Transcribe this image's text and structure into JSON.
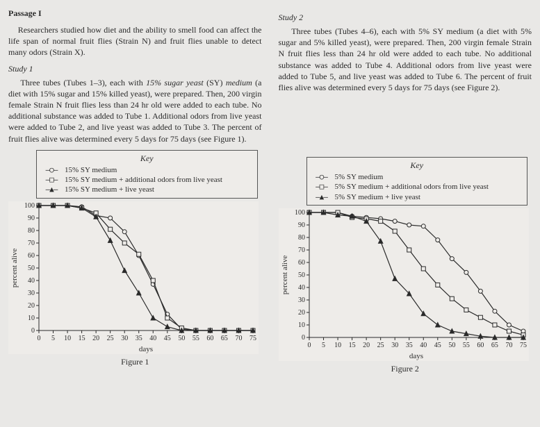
{
  "passage_title": "Passage I",
  "intro": "Researchers studied how diet and the ability to smell food can affect the life span of normal fruit flies (Strain N) and fruit flies unable to detect many odors (Strain X).",
  "study1": {
    "title": "Study 1",
    "text_before_italic": "Three tubes (Tubes 1–3), each with ",
    "italic1": "15% sugar yeast",
    "text_mid1": " (SY) ",
    "italic2": "medium",
    "text_after": " (a diet with 15% sugar and 15% killed yeast), were prepared. Then, 200 virgin female Strain N fruit flies less than 24 hr old were added to each tube. No additional substance was added to Tube 1. Additional odors from live yeast were added to Tube 2, and live yeast was added to Tube 3. The percent of fruit flies alive was determined every 5 days for 75 days (see Figure 1)."
  },
  "study2": {
    "title": "Study 2",
    "text": "Three tubes (Tubes 4–6), each with 5% SY medium (a diet with 5% sugar and 5% killed yeast), were prepared. Then, 200 virgin female Strain N fruit flies less than 24 hr old were added to each tube. No additional substance was added to Tube 4. Additional odors from live yeast were added to Tube 5, and live yeast was added to Tube 6. The percent of fruit flies alive was determined every 5 days for 75 days (see Figure 2)."
  },
  "chart1": {
    "key_title": "Key",
    "legend": [
      {
        "sym": "—○—",
        "label": "15% SY medium"
      },
      {
        "sym": "—□—",
        "label": "15% SY medium + additional odors from live yeast"
      },
      {
        "sym": "—▲—",
        "label": "15% SY medium + live yeast"
      }
    ],
    "y_label": "percent alive",
    "x_label": "days",
    "x_ticks": [
      0,
      5,
      10,
      15,
      20,
      25,
      30,
      35,
      40,
      45,
      50,
      55,
      60,
      65,
      70,
      75
    ],
    "y_ticks": [
      0,
      10,
      20,
      30,
      40,
      50,
      60,
      70,
      80,
      90,
      100
    ],
    "x_range": [
      0,
      75
    ],
    "y_range": [
      0,
      100
    ],
    "series": [
      {
        "marker": "circle",
        "fill": "none",
        "data": [
          [
            0,
            100
          ],
          [
            5,
            100
          ],
          [
            10,
            100
          ],
          [
            15,
            99
          ],
          [
            20,
            92
          ],
          [
            25,
            90
          ],
          [
            30,
            79
          ],
          [
            35,
            60
          ],
          [
            40,
            37
          ],
          [
            45,
            13
          ],
          [
            50,
            1
          ],
          [
            55,
            0
          ],
          [
            60,
            0
          ],
          [
            65,
            0
          ],
          [
            70,
            0
          ],
          [
            75,
            0
          ]
        ]
      },
      {
        "marker": "square",
        "fill": "none",
        "data": [
          [
            0,
            100
          ],
          [
            5,
            100
          ],
          [
            10,
            100
          ],
          [
            15,
            98
          ],
          [
            20,
            94
          ],
          [
            25,
            81
          ],
          [
            30,
            70
          ],
          [
            35,
            61
          ],
          [
            40,
            40
          ],
          [
            45,
            10
          ],
          [
            50,
            2
          ],
          [
            55,
            0
          ],
          [
            60,
            0
          ],
          [
            65,
            0
          ],
          [
            70,
            0
          ],
          [
            75,
            0
          ]
        ]
      },
      {
        "marker": "triangle",
        "fill": "#2a2a2a",
        "data": [
          [
            0,
            100
          ],
          [
            5,
            100
          ],
          [
            10,
            100
          ],
          [
            15,
            98
          ],
          [
            20,
            91
          ],
          [
            25,
            72
          ],
          [
            30,
            48
          ],
          [
            35,
            30
          ],
          [
            40,
            10
          ],
          [
            45,
            3
          ],
          [
            50,
            0
          ],
          [
            55,
            0
          ],
          [
            60,
            0
          ],
          [
            65,
            0
          ],
          [
            70,
            0
          ],
          [
            75,
            0
          ]
        ]
      }
    ],
    "line_color": "#2a2a2a",
    "bg": "#eeece9",
    "caption": "Figure 1"
  },
  "chart2": {
    "key_title": "Key",
    "legend": [
      {
        "sym": "—○—",
        "label": "5% SY medium"
      },
      {
        "sym": "—□—",
        "label": "5% SY medium + additional odors from live yeast"
      },
      {
        "sym": "—▲—",
        "label": "5% SY medium + live yeast"
      }
    ],
    "y_label": "percent alive",
    "x_label": "days",
    "x_ticks": [
      0,
      5,
      10,
      15,
      20,
      25,
      30,
      35,
      40,
      45,
      50,
      55,
      60,
      65,
      70,
      75
    ],
    "y_ticks": [
      0,
      10,
      20,
      30,
      40,
      50,
      60,
      70,
      80,
      90,
      100
    ],
    "x_range": [
      0,
      75
    ],
    "y_range": [
      0,
      100
    ],
    "series": [
      {
        "marker": "circle",
        "fill": "none",
        "data": [
          [
            0,
            100
          ],
          [
            5,
            100
          ],
          [
            10,
            100
          ],
          [
            15,
            97
          ],
          [
            20,
            96
          ],
          [
            25,
            95
          ],
          [
            30,
            93
          ],
          [
            35,
            90
          ],
          [
            40,
            89
          ],
          [
            45,
            78
          ],
          [
            50,
            63
          ],
          [
            55,
            52
          ],
          [
            60,
            37
          ],
          [
            65,
            21
          ],
          [
            70,
            10
          ],
          [
            75,
            5
          ]
        ]
      },
      {
        "marker": "square",
        "fill": "none",
        "data": [
          [
            0,
            100
          ],
          [
            5,
            100
          ],
          [
            10,
            100
          ],
          [
            15,
            96
          ],
          [
            20,
            95
          ],
          [
            25,
            93
          ],
          [
            30,
            85
          ],
          [
            35,
            70
          ],
          [
            40,
            55
          ],
          [
            45,
            42
          ],
          [
            50,
            31
          ],
          [
            55,
            22
          ],
          [
            60,
            16
          ],
          [
            65,
            10
          ],
          [
            70,
            5
          ],
          [
            75,
            2
          ]
        ]
      },
      {
        "marker": "triangle",
        "fill": "#2a2a2a",
        "data": [
          [
            0,
            100
          ],
          [
            5,
            100
          ],
          [
            10,
            98
          ],
          [
            15,
            97
          ],
          [
            20,
            93
          ],
          [
            25,
            77
          ],
          [
            30,
            47
          ],
          [
            35,
            35
          ],
          [
            40,
            19
          ],
          [
            45,
            10
          ],
          [
            50,
            5
          ],
          [
            55,
            3
          ],
          [
            60,
            1
          ],
          [
            65,
            0
          ],
          [
            70,
            0
          ],
          [
            75,
            0
          ]
        ]
      }
    ],
    "line_color": "#2a2a2a",
    "bg": "#eeece9",
    "caption": "Figure 2"
  }
}
